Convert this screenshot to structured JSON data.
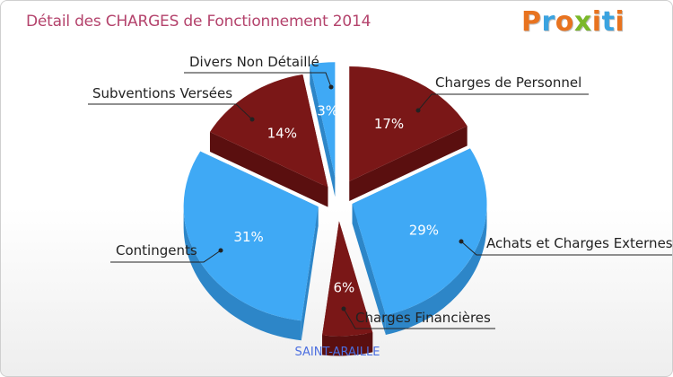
{
  "title": "Détail des CHARGES de Fonctionnement 2014",
  "logo": {
    "text": "Proxiti",
    "colors": [
      "#e8731f",
      "#3aa3e0",
      "#e8731f",
      "#7ab828",
      "#e8731f",
      "#3aa3e0",
      "#e8731f"
    ]
  },
  "subtitle": "SAINT-ARAILLE",
  "colors": {
    "dark_red": "#7a1717",
    "light_blue": "#3fa9f5",
    "title": "#b4436c",
    "subtitle": "#4c6fe0"
  },
  "chart_data": {
    "type": "pie",
    "title": "Détail des CHARGES de Fonctionnement 2014",
    "slices": [
      {
        "label": "Charges de Personnel",
        "value": 17,
        "pct_label": "17%",
        "color": "#7a1717"
      },
      {
        "label": "Achats et Charges Externes",
        "value": 29,
        "pct_label": "29%",
        "color": "#3fa9f5"
      },
      {
        "label": "Charges Financières",
        "value": 6,
        "pct_label": "6%",
        "color": "#7a1717"
      },
      {
        "label": "Contingents",
        "value": 31,
        "pct_label": "31%",
        "color": "#3fa9f5"
      },
      {
        "label": "Subventions Versées",
        "value": 14,
        "pct_label": "14%",
        "color": "#7a1717"
      },
      {
        "label": "Divers Non Détaillé",
        "value": 3,
        "pct_label": "3%",
        "color": "#3fa9f5"
      }
    ]
  }
}
